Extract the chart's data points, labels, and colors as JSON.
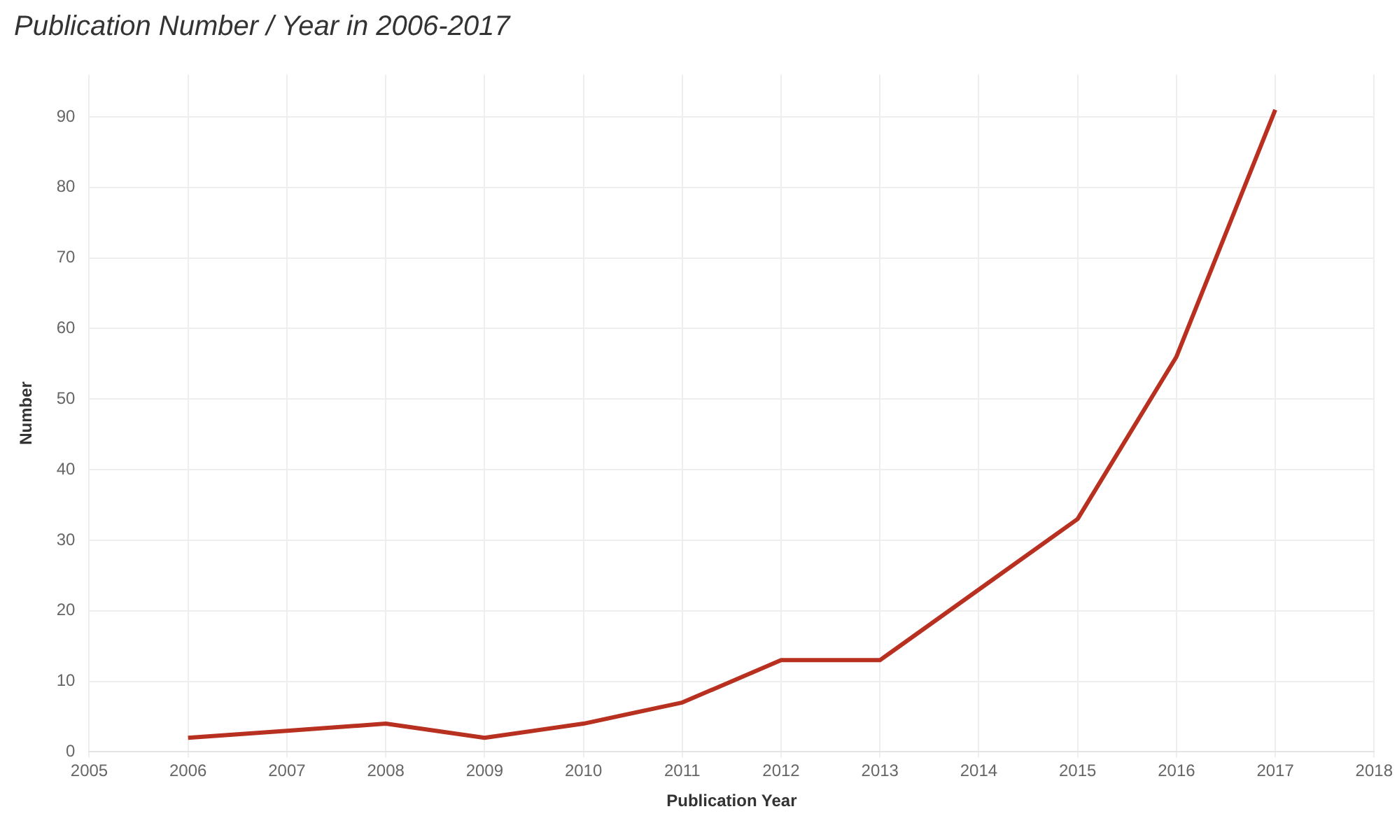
{
  "chart_data": {
    "type": "line",
    "title": "Publication Number / Year in 2006-2017",
    "xlabel": "Publication Year",
    "ylabel": "Number",
    "x": [
      2006,
      2007,
      2008,
      2009,
      2010,
      2011,
      2012,
      2013,
      2014,
      2015,
      2016,
      2017
    ],
    "series": [
      {
        "color": "#b8301f",
        "values": [
          2,
          3,
          4,
          2,
          4,
          7,
          13,
          13,
          23,
          33,
          56,
          91
        ]
      }
    ],
    "xlim": [
      2005,
      2018
    ],
    "xticks": [
      2005,
      2006,
      2007,
      2008,
      2009,
      2010,
      2011,
      2012,
      2013,
      2014,
      2015,
      2016,
      2017,
      2018
    ],
    "ylim": [
      0,
      96
    ],
    "yticks": [
      0,
      10,
      20,
      30,
      40,
      50,
      60,
      70,
      80,
      90
    ],
    "grid": true,
    "legend": false,
    "marker": "none",
    "line_style": "solid"
  }
}
